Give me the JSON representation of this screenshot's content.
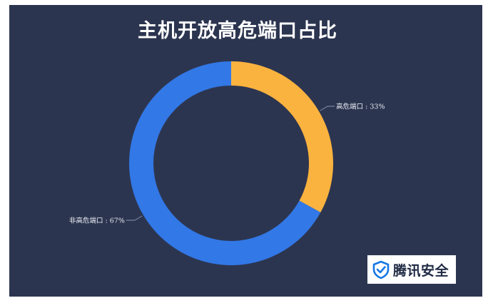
{
  "chart_data": {
    "type": "pie",
    "title": "主机开放高危端口占比",
    "donut": true,
    "slices": [
      {
        "label": "高危端口 : 33%",
        "name": "高危端口",
        "value": 33,
        "color": "#fbb33f"
      },
      {
        "label": "非高危端口 : 67%",
        "name": "非高危端口",
        "value": 67,
        "color": "#3278e6"
      }
    ]
  },
  "brand": {
    "text": "腾讯安全",
    "icon": "shield-check-icon",
    "icon_color": "#1677e6"
  },
  "colors": {
    "background": "#2c3550"
  }
}
